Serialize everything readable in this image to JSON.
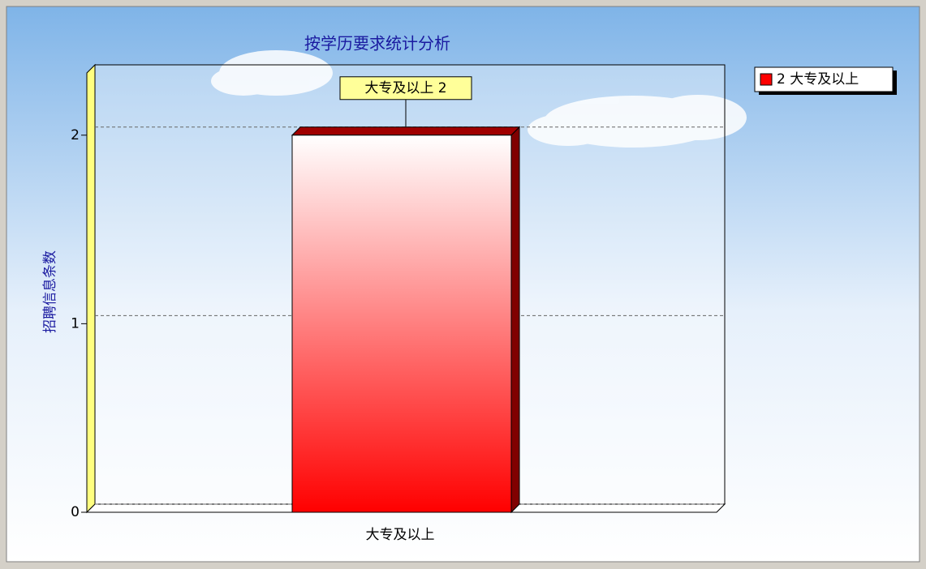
{
  "chart_data": {
    "type": "bar3d",
    "title": "按学历要求统计分析",
    "y_label": "招聘信息条数",
    "categories": [
      "大专及以上"
    ],
    "series": [
      {
        "name": "2 大专及以上",
        "color": "#ff0000",
        "values": [
          2
        ],
        "value_labels": [
          "大专及以上 2"
        ]
      }
    ],
    "ylim": [
      0,
      2.33
    ],
    "yticks": [
      0,
      1,
      2
    ],
    "grid": true,
    "legend": "top-right"
  }
}
